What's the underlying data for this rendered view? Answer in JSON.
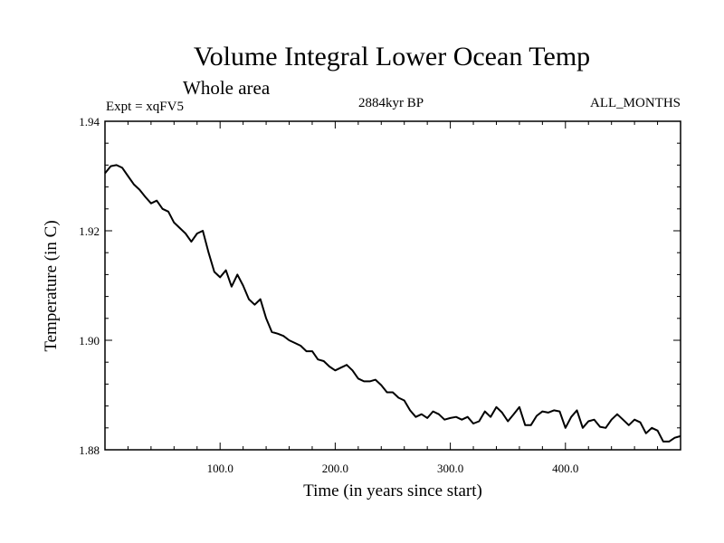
{
  "chart_data": {
    "type": "line",
    "title": "Volume Integral Lower Ocean Temp",
    "subtitle": "Whole area",
    "experiment": "Expt = xqFV5",
    "period": "2884kyr BP",
    "season": "ALL_MONTHS",
    "xlabel": "Time (in years since start)",
    "ylabel": "Temperature (in C)",
    "xlim": [
      0,
      500
    ],
    "ylim": [
      1.88,
      1.94
    ],
    "x_ticks": [
      100,
      200,
      300,
      400
    ],
    "x_tick_labels": [
      "100.0",
      "200.0",
      "300.0",
      "400.0"
    ],
    "y_ticks": [
      1.88,
      1.9,
      1.92,
      1.94
    ],
    "y_tick_labels": [
      "1.88",
      "1.90",
      "1.92",
      "1.94"
    ],
    "grid": false,
    "series": [
      {
        "name": "Volume Integral Lower Ocean Temp",
        "color": "#000000",
        "x": [
          0,
          5,
          10,
          15,
          20,
          25,
          30,
          35,
          40,
          45,
          50,
          55,
          60,
          65,
          70,
          75,
          80,
          85,
          90,
          95,
          100,
          105,
          110,
          115,
          120,
          125,
          130,
          135,
          140,
          145,
          150,
          155,
          160,
          165,
          170,
          175,
          180,
          185,
          190,
          195,
          200,
          205,
          210,
          215,
          220,
          225,
          230,
          235,
          240,
          245,
          250,
          255,
          260,
          265,
          270,
          275,
          280,
          285,
          290,
          295,
          300,
          305,
          310,
          315,
          320,
          325,
          330,
          335,
          340,
          345,
          350,
          355,
          360,
          365,
          370,
          375,
          380,
          385,
          390,
          395,
          400,
          405,
          410,
          415,
          420,
          425,
          430,
          435,
          440,
          445,
          450,
          455,
          460,
          465,
          470,
          475,
          480,
          485,
          490,
          495,
          500
        ],
        "y": [
          1.9305,
          1.9318,
          1.932,
          1.9315,
          1.93,
          1.9285,
          1.9275,
          1.9262,
          1.925,
          1.9255,
          1.924,
          1.9235,
          1.9215,
          1.9205,
          1.9195,
          1.918,
          1.9195,
          1.92,
          1.916,
          1.9125,
          1.9115,
          1.9128,
          1.9098,
          1.912,
          1.91,
          1.9075,
          1.9065,
          1.9075,
          1.904,
          1.9015,
          1.9012,
          1.9008,
          1.9,
          1.8995,
          1.899,
          1.898,
          1.898,
          1.8965,
          1.8962,
          1.8952,
          1.8945,
          1.895,
          1.8955,
          1.8945,
          1.893,
          1.8925,
          1.8925,
          1.8928,
          1.8918,
          1.8905,
          1.8905,
          1.8895,
          1.889,
          1.8872,
          1.886,
          1.8865,
          1.8858,
          1.887,
          1.8865,
          1.8855,
          1.8858,
          1.886,
          1.8855,
          1.886,
          1.8848,
          1.8852,
          1.887,
          1.886,
          1.8878,
          1.8868,
          1.8852,
          1.8865,
          1.8878,
          1.8845,
          1.8845,
          1.8862,
          1.887,
          1.8868,
          1.8872,
          1.887,
          1.884,
          1.886,
          1.8872,
          1.884,
          1.8852,
          1.8855,
          1.8842,
          1.884,
          1.8855,
          1.8865,
          1.8855,
          1.8845,
          1.8855,
          1.885,
          1.883,
          1.884,
          1.8835,
          1.8815,
          1.8815,
          1.8822,
          1.8825
        ]
      }
    ]
  }
}
